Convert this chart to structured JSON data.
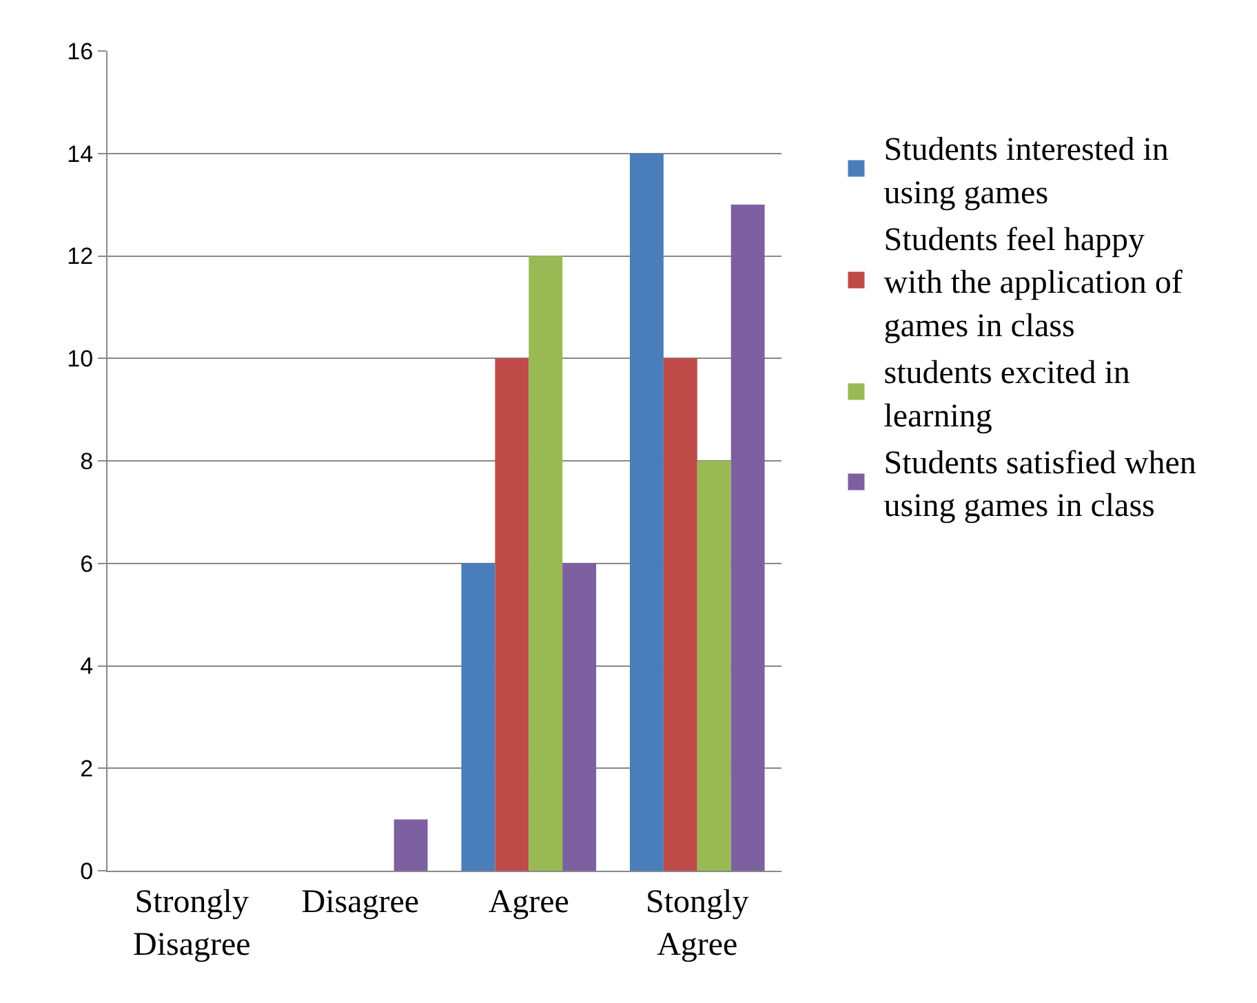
{
  "chart_data": {
    "type": "bar",
    "categories": [
      "Strongly Disagree",
      "Disagree",
      "Agree",
      "Stongly Agree"
    ],
    "series": [
      {
        "name": "Students interested in using games",
        "color": "#4a7ebb",
        "values": [
          0,
          0,
          6,
          14
        ]
      },
      {
        "name": "Students feel happy with the application of games in class",
        "color": "#be4b48",
        "values": [
          0,
          0,
          10,
          10
        ]
      },
      {
        "name": "students excited in learning",
        "color": "#98b954",
        "values": [
          0,
          0,
          12,
          8
        ]
      },
      {
        "name": "Students satisfied when using games in class",
        "color": "#7d60a0",
        "values": [
          0,
          1,
          6,
          13
        ]
      }
    ],
    "ylim": [
      0,
      16
    ],
    "yticks": [
      0,
      2,
      4,
      6,
      8,
      10,
      12,
      14,
      16
    ],
    "grid": "y",
    "legend": "right"
  }
}
